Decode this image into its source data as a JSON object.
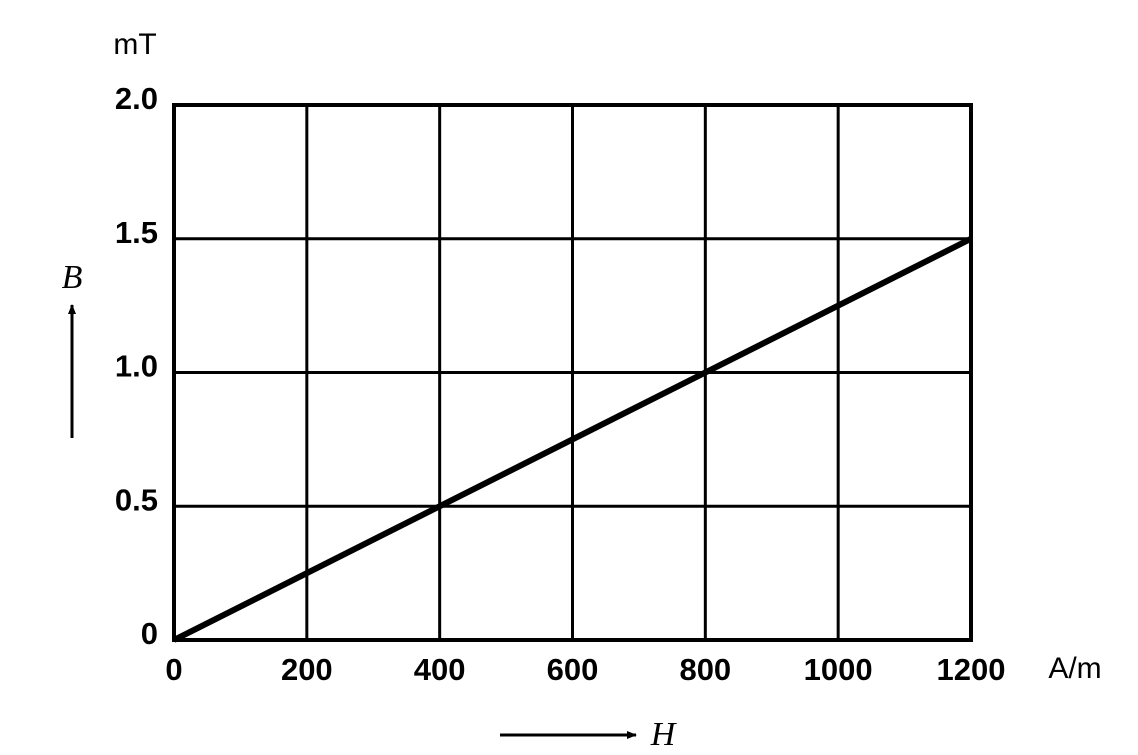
{
  "chart_data": {
    "type": "line",
    "x": [
      0,
      1200
    ],
    "series": [
      {
        "values": [
          0,
          1.5
        ],
        "color": "#000000"
      }
    ],
    "xlim": [
      0,
      1200
    ],
    "xticks": [
      0,
      200,
      400,
      600,
      800,
      1000,
      1200
    ],
    "ylim": [
      0,
      2
    ],
    "yticks": [
      0,
      0.5,
      {
        "value": 1,
        "label": "1.0"
      },
      1.5,
      {
        "value": 2,
        "label": "2.0"
      }
    ],
    "grid": true,
    "x_unit": "A/m",
    "y_unit": "mT",
    "xlabel": "H",
    "ylabel": "B"
  }
}
